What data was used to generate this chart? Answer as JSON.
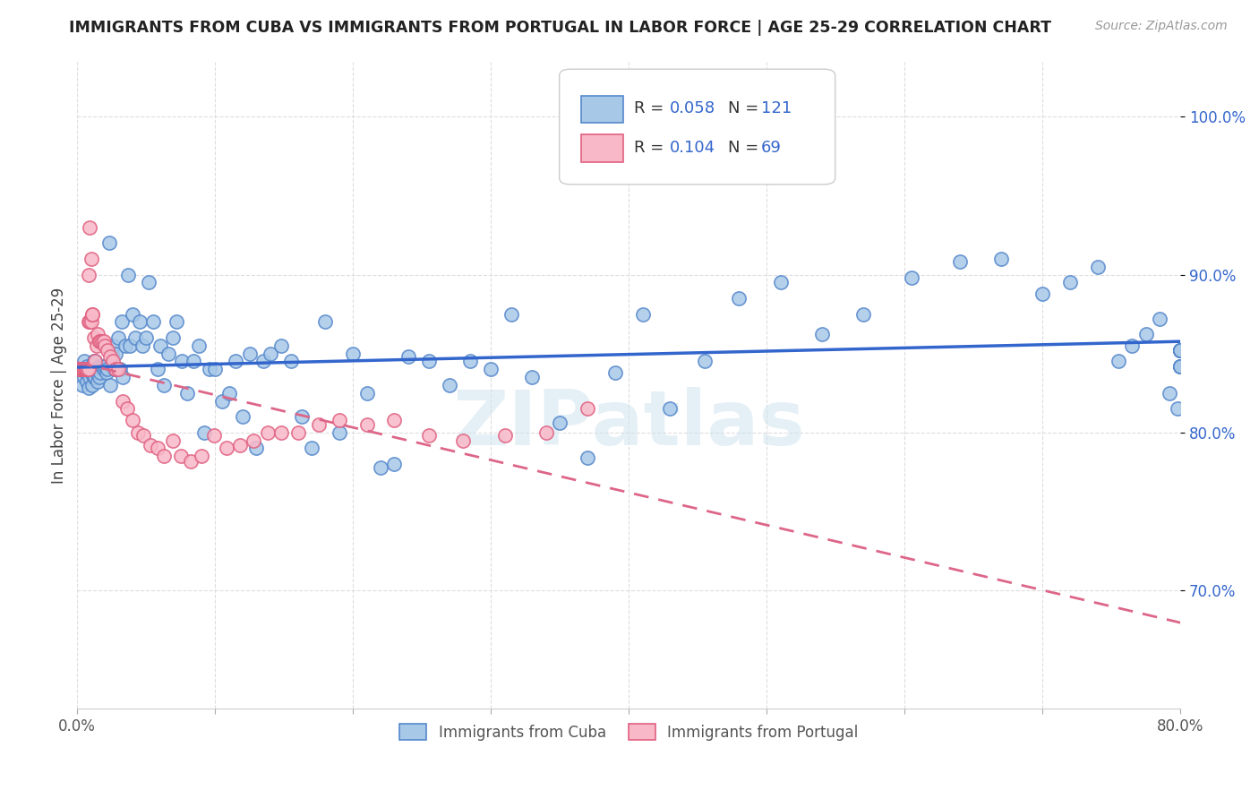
{
  "title": "IMMIGRANTS FROM CUBA VS IMMIGRANTS FROM PORTUGAL IN LABOR FORCE | AGE 25-29 CORRELATION CHART",
  "source": "Source: ZipAtlas.com",
  "ylabel": "In Labor Force | Age 25-29",
  "xlim": [
    0.0,
    0.8
  ],
  "ylim": [
    0.625,
    1.035
  ],
  "xticks": [
    0.0,
    0.1,
    0.2,
    0.3,
    0.4,
    0.5,
    0.6,
    0.7,
    0.8
  ],
  "xticklabels": [
    "0.0%",
    "",
    "",
    "",
    "",
    "",
    "",
    "",
    "80.0%"
  ],
  "ytick_positions": [
    0.7,
    0.8,
    0.9,
    1.0
  ],
  "yticklabels_right": [
    "70.0%",
    "80.0%",
    "90.0%",
    "100.0%"
  ],
  "cuba_color": "#a8c8e8",
  "portugal_color": "#f8b8c8",
  "cuba_edge_color": "#5588cc",
  "portugal_edge_color": "#e06080",
  "cuba_line_color": "#3366cc",
  "portugal_line_color": "#dd6688",
  "r_cuba": 0.058,
  "n_cuba": 121,
  "r_portugal": 0.104,
  "n_portugal": 69,
  "legend_color": "#3366cc",
  "watermark_text": "ZIPatlas",
  "cuba_scatter_x": [
    0.002,
    0.003,
    0.004,
    0.005,
    0.005,
    0.006,
    0.007,
    0.007,
    0.008,
    0.008,
    0.009,
    0.01,
    0.01,
    0.011,
    0.011,
    0.012,
    0.012,
    0.013,
    0.013,
    0.014,
    0.015,
    0.015,
    0.016,
    0.016,
    0.017,
    0.018,
    0.019,
    0.02,
    0.021,
    0.022,
    0.023,
    0.024,
    0.025,
    0.026,
    0.027,
    0.028,
    0.03,
    0.031,
    0.032,
    0.033,
    0.035,
    0.037,
    0.038,
    0.04,
    0.042,
    0.045,
    0.047,
    0.05,
    0.052,
    0.055,
    0.058,
    0.06,
    0.063,
    0.066,
    0.069,
    0.072,
    0.076,
    0.08,
    0.084,
    0.088,
    0.092,
    0.096,
    0.1,
    0.105,
    0.11,
    0.115,
    0.12,
    0.125,
    0.13,
    0.135,
    0.14,
    0.148,
    0.155,
    0.163,
    0.17,
    0.18,
    0.19,
    0.2,
    0.21,
    0.22,
    0.23,
    0.24,
    0.255,
    0.27,
    0.285,
    0.3,
    0.315,
    0.33,
    0.35,
    0.37,
    0.39,
    0.41,
    0.43,
    0.455,
    0.48,
    0.51,
    0.54,
    0.57,
    0.605,
    0.64,
    0.67,
    0.7,
    0.72,
    0.74,
    0.755,
    0.765,
    0.775,
    0.785,
    0.792,
    0.798,
    0.8,
    0.8,
    0.8,
    0.8,
    0.8,
    0.8,
    0.8,
    0.8,
    0.8,
    0.8,
    0.8
  ],
  "cuba_scatter_y": [
    0.84,
    0.84,
    0.83,
    0.845,
    0.835,
    0.838,
    0.832,
    0.842,
    0.828,
    0.838,
    0.835,
    0.838,
    0.842,
    0.83,
    0.84,
    0.835,
    0.845,
    0.835,
    0.845,
    0.838,
    0.832,
    0.84,
    0.835,
    0.842,
    0.838,
    0.842,
    0.84,
    0.842,
    0.838,
    0.84,
    0.92,
    0.83,
    0.85,
    0.855,
    0.84,
    0.85,
    0.86,
    0.84,
    0.87,
    0.835,
    0.855,
    0.9,
    0.855,
    0.875,
    0.86,
    0.87,
    0.855,
    0.86,
    0.895,
    0.87,
    0.84,
    0.855,
    0.83,
    0.85,
    0.86,
    0.87,
    0.845,
    0.825,
    0.845,
    0.855,
    0.8,
    0.84,
    0.84,
    0.82,
    0.825,
    0.845,
    0.81,
    0.85,
    0.79,
    0.845,
    0.85,
    0.855,
    0.845,
    0.81,
    0.79,
    0.87,
    0.8,
    0.85,
    0.825,
    0.778,
    0.78,
    0.848,
    0.845,
    0.83,
    0.845,
    0.84,
    0.875,
    0.835,
    0.806,
    0.784,
    0.838,
    0.875,
    0.815,
    0.845,
    0.885,
    0.895,
    0.862,
    0.875,
    0.898,
    0.908,
    0.91,
    0.888,
    0.895,
    0.905,
    0.845,
    0.855,
    0.862,
    0.872,
    0.825,
    0.815,
    0.842,
    0.842,
    0.842,
    0.852,
    0.842,
    0.852,
    0.852,
    0.852,
    0.852,
    0.852,
    0.852
  ],
  "portugal_scatter_x": [
    0.001,
    0.002,
    0.002,
    0.003,
    0.003,
    0.003,
    0.004,
    0.004,
    0.004,
    0.005,
    0.005,
    0.005,
    0.006,
    0.006,
    0.006,
    0.007,
    0.007,
    0.007,
    0.008,
    0.008,
    0.008,
    0.009,
    0.009,
    0.01,
    0.01,
    0.011,
    0.011,
    0.012,
    0.013,
    0.014,
    0.015,
    0.016,
    0.017,
    0.018,
    0.019,
    0.02,
    0.022,
    0.024,
    0.026,
    0.028,
    0.03,
    0.033,
    0.036,
    0.04,
    0.044,
    0.048,
    0.053,
    0.058,
    0.063,
    0.069,
    0.075,
    0.082,
    0.09,
    0.099,
    0.108,
    0.118,
    0.128,
    0.138,
    0.148,
    0.16,
    0.175,
    0.19,
    0.21,
    0.23,
    0.255,
    0.28,
    0.31,
    0.34,
    0.37
  ],
  "portugal_scatter_y": [
    0.84,
    0.84,
    0.84,
    0.84,
    0.84,
    0.84,
    0.84,
    0.84,
    0.84,
    0.84,
    0.84,
    0.84,
    0.84,
    0.84,
    0.84,
    0.84,
    0.84,
    0.84,
    0.9,
    0.84,
    0.87,
    0.93,
    0.87,
    0.91,
    0.87,
    0.875,
    0.875,
    0.86,
    0.845,
    0.855,
    0.862,
    0.858,
    0.858,
    0.858,
    0.858,
    0.855,
    0.852,
    0.848,
    0.845,
    0.84,
    0.84,
    0.82,
    0.815,
    0.808,
    0.8,
    0.798,
    0.792,
    0.79,
    0.785,
    0.795,
    0.785,
    0.782,
    0.785,
    0.798,
    0.79,
    0.792,
    0.795,
    0.8,
    0.8,
    0.8,
    0.805,
    0.808,
    0.805,
    0.808,
    0.798,
    0.795,
    0.798,
    0.8,
    0.815
  ]
}
